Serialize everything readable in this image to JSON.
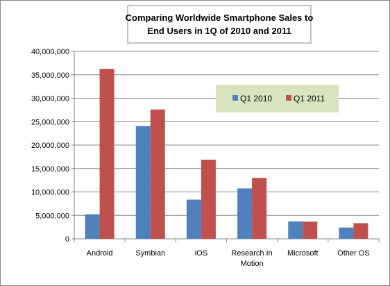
{
  "chart_data": {
    "type": "bar",
    "title": "Comparing Worldwide Smartphone Sales to End Users in 1Q of 2010  and 2011",
    "title_lines": [
      "Comparing Worldwide Smartphone Sales to",
      "End Users in 1Q of 2010  and 2011"
    ],
    "xlabel": "",
    "ylabel": "",
    "categories": [
      [
        "Android"
      ],
      [
        "Symbian"
      ],
      [
        "iOS"
      ],
      [
        "Research In",
        "Motion"
      ],
      [
        "Microsoft"
      ],
      [
        "Other OS"
      ]
    ],
    "series": [
      {
        "name": "Q1 2010",
        "color": "#4f81bd",
        "values": [
          5227000,
          24068000,
          8360000,
          10753000,
          3696000,
          2403000
        ]
      },
      {
        "name": "Q1 2011",
        "color": "#c0504d",
        "values": [
          36268000,
          27599000,
          16883000,
          13004000,
          3659000,
          3333000
        ]
      }
    ],
    "ylim": [
      0,
      40000000
    ],
    "yticks": [
      0,
      5000000,
      10000000,
      15000000,
      20000000,
      25000000,
      30000000,
      35000000,
      40000000
    ],
    "ytick_labels": [
      "0",
      "5,000,000",
      "10,000,000",
      "15,000,000",
      "20,000,000",
      "25,000,000",
      "30,000,000",
      "35,000,000",
      "40,000,000"
    ],
    "grid": true,
    "legend_position": "top-right",
    "legend_background": "#d7e4bd"
  }
}
